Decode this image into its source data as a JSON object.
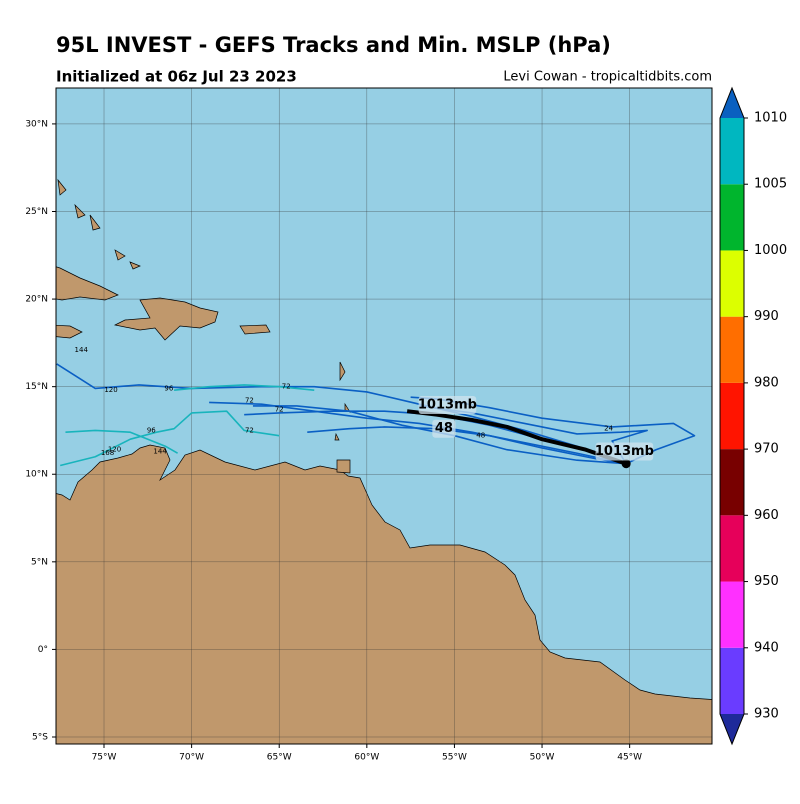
{
  "title": "95L INVEST - GEFS Tracks and Min. MSLP (hPa)",
  "subtitle": "Initialized at 06z Jul 23 2023",
  "credit": "Levi Cowan - tropicaltidbits.com",
  "map": {
    "lon_range": [
      -77.74,
      -40.3
    ],
    "lat_range": [
      -5.4,
      32.05
    ],
    "lat_ticks": [
      {
        "value": 30,
        "label": "30°N"
      },
      {
        "value": 25,
        "label": "25°N"
      },
      {
        "value": 20,
        "label": "20°N"
      },
      {
        "value": 15,
        "label": "15°N"
      },
      {
        "value": 10,
        "label": "10°N"
      },
      {
        "value": 5,
        "label": "5°N"
      },
      {
        "value": 0,
        "label": "0°"
      },
      {
        "value": -5,
        "label": "5°S"
      }
    ],
    "lon_ticks": [
      {
        "value": -75,
        "label": "75°W"
      },
      {
        "value": -70,
        "label": "70°W"
      },
      {
        "value": -65,
        "label": "65°W"
      },
      {
        "value": -60,
        "label": "60°W"
      },
      {
        "value": -55,
        "label": "55°W"
      },
      {
        "value": -50,
        "label": "50°W"
      },
      {
        "value": -45,
        "label": "45°W"
      }
    ]
  },
  "tracks": [
    {
      "color": "#0a5fc4",
      "lon": [
        -45.2,
        -47,
        -50,
        -53,
        -56,
        -59,
        -62,
        -65,
        -67
      ],
      "lat": [
        10.6,
        11.3,
        12,
        12.8,
        13.4,
        13.6,
        13.6,
        13.5,
        13.4
      ]
    },
    {
      "color": "#0a5fc4",
      "lon": [
        -45.2,
        -48,
        -51,
        -54,
        -57,
        -60,
        -63,
        -66,
        -70,
        -73,
        -75.5,
        -77.7
      ],
      "lat": [
        10.6,
        11.6,
        12.5,
        13.3,
        14,
        14.7,
        15,
        15,
        14.9,
        15.1,
        14.9,
        16.3
      ]
    },
    {
      "color": "#0a5fc4",
      "lon": [
        -45.2,
        -48,
        -51,
        -54,
        -57,
        -60,
        -63,
        -66,
        -69
      ],
      "lat": [
        10.6,
        11.2,
        11.8,
        12.4,
        12.9,
        13.2,
        13.6,
        14,
        14.1
      ]
    },
    {
      "color": "#0a5fc4",
      "lon": [
        -45.2,
        -47,
        -50,
        -53,
        -56,
        -59,
        -61,
        -63.4
      ],
      "lat": [
        10.6,
        10.9,
        11.5,
        12.2,
        12.6,
        12.7,
        12.6,
        12.4
      ]
    },
    {
      "color": "#0a5fc4",
      "lon": [
        -45.2,
        -43.5,
        -41.3,
        -42.5,
        -46,
        -50,
        -53,
        -56,
        -57.5
      ],
      "lat": [
        10.6,
        11.4,
        12.2,
        12.9,
        12.7,
        13.2,
        13.8,
        14.3,
        14.4
      ]
    },
    {
      "color": "#0a5fc4",
      "lon": [
        -45.2,
        -46,
        -44,
        -45.5,
        -48,
        -51,
        -54,
        -57
      ],
      "lat": [
        10.6,
        11.9,
        12.5,
        12.4,
        12.3,
        12.9,
        13.5,
        13.9
      ]
    },
    {
      "color": "#0a5fc4",
      "lon": [
        -45.2,
        -48,
        -52,
        -55,
        -58,
        -61,
        -64,
        -66.5
      ],
      "lat": [
        10.6,
        10.8,
        11.4,
        12.2,
        12.8,
        13.6,
        13.9,
        13.9
      ]
    },
    {
      "color": "#18b4bc",
      "lon": [
        -77.5,
        -75.5,
        -73.5,
        -72,
        -71,
        -70,
        -68,
        -67,
        -65
      ],
      "lat": [
        10.5,
        11,
        12,
        12.4,
        12.6,
        13.5,
        13.6,
        12.5,
        12.2
      ]
    },
    {
      "color": "#18b4bc",
      "lon": [
        -77.2,
        -75.5,
        -73.5,
        -72,
        -71.5,
        -70.8
      ],
      "lat": [
        12.4,
        12.5,
        12.4,
        11.8,
        11.6,
        11.2
      ]
    },
    {
      "color": "#18b4bc",
      "lon": [
        -71,
        -69,
        -67,
        -65,
        -63
      ],
      "lat": [
        14.8,
        15,
        15.1,
        15,
        14.8
      ]
    }
  ],
  "mean_track": {
    "color": "#000000",
    "lon": [
      -45.2,
      -47.5,
      -50,
      -52,
      -54,
      -56,
      -57.7
    ],
    "lat": [
      10.6,
      11.4,
      12,
      12.7,
      13.1,
      13.4,
      13.6
    ]
  },
  "labels": [
    {
      "text": "1013mb",
      "lon": -55.4,
      "lat": 13.95,
      "bold": true
    },
    {
      "text": "48",
      "lon": -55.6,
      "lat": 12.6,
      "bold": true
    },
    {
      "text": "1013mb",
      "lon": -45.3,
      "lat": 11.3,
      "bold": true
    },
    {
      "text": "120",
      "lon": -74.6,
      "lat": 14.8
    },
    {
      "text": "96",
      "lon": -71.3,
      "lat": 14.9
    },
    {
      "text": "72",
      "lon": -64.6,
      "lat": 15
    },
    {
      "text": "72",
      "lon": -66.7,
      "lat": 14.2
    },
    {
      "text": "72",
      "lon": -65,
      "lat": 13.7
    },
    {
      "text": "72",
      "lon": -66.7,
      "lat": 12.5
    },
    {
      "text": "96",
      "lon": -72.3,
      "lat": 12.5
    },
    {
      "text": "120",
      "lon": -74.4,
      "lat": 11.4
    },
    {
      "text": "168",
      "lon": -74.8,
      "lat": 11.2
    },
    {
      "text": "144",
      "lon": -71.8,
      "lat": 11.3
    },
    {
      "text": "144",
      "lon": -76.3,
      "lat": 17.1
    },
    {
      "text": "24",
      "lon": -46.2,
      "lat": 12.6
    },
    {
      "text": "48",
      "lon": -53.5,
      "lat": 12.2
    }
  ],
  "colorbar": {
    "ticks": [
      930,
      940,
      950,
      960,
      970,
      980,
      990,
      1000,
      1005,
      1010
    ],
    "colors": [
      "#6a3cff",
      "#ff30ff",
      "#e6005a",
      "#780000",
      "#ff1400",
      "#ff6e00",
      "#dcff00",
      "#00b52d",
      "#00b7c0"
    ],
    "over_color": "#0a60c0",
    "under_color": "#1e2a9a"
  }
}
